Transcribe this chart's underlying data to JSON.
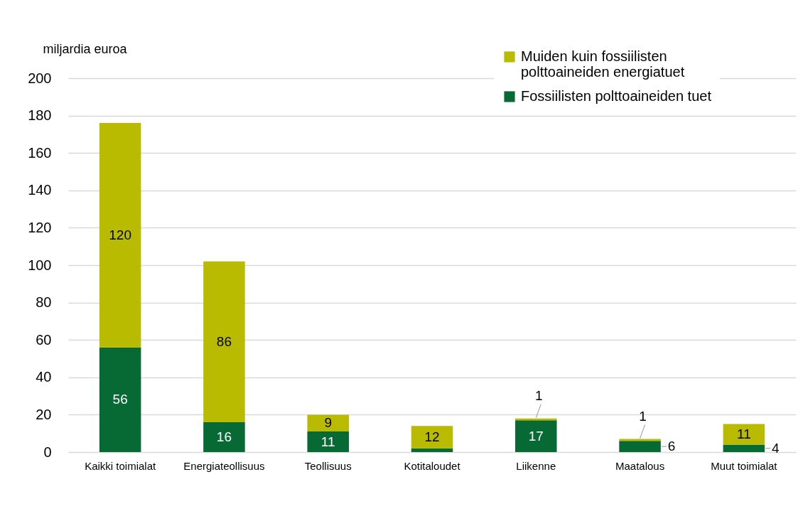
{
  "chart_data": {
    "type": "bar",
    "ylabel": "miljardia euroa",
    "categories": [
      "Kaikki toimialat",
      "Energiateollisuus",
      "Teollisuus",
      "Kotitaloudet",
      "Liikenne",
      "Maatalous",
      "Muut toimialat"
    ],
    "stacked": true,
    "series": [
      {
        "name": "Fossiilisten polttoaineiden tuet",
        "color": "#076a34",
        "values": [
          56,
          16,
          11,
          2,
          17,
          6,
          4
        ],
        "value_labels": [
          "56",
          "16",
          "11",
          null,
          "17",
          "6",
          "4"
        ]
      },
      {
        "name": "Muiden kuin fossiilisten polttoaineiden energiatuet",
        "color": "#b8bb00",
        "values": [
          120,
          86,
          9,
          12,
          1,
          1,
          11
        ],
        "value_labels": [
          "120",
          "86",
          "9",
          "12",
          "1",
          "1",
          "11"
        ]
      }
    ],
    "ylim": [
      0,
      200
    ],
    "yticks": [
      0,
      20,
      40,
      60,
      80,
      100,
      120,
      140,
      160,
      180,
      200
    ],
    "grid": "y",
    "legend": "top right"
  }
}
